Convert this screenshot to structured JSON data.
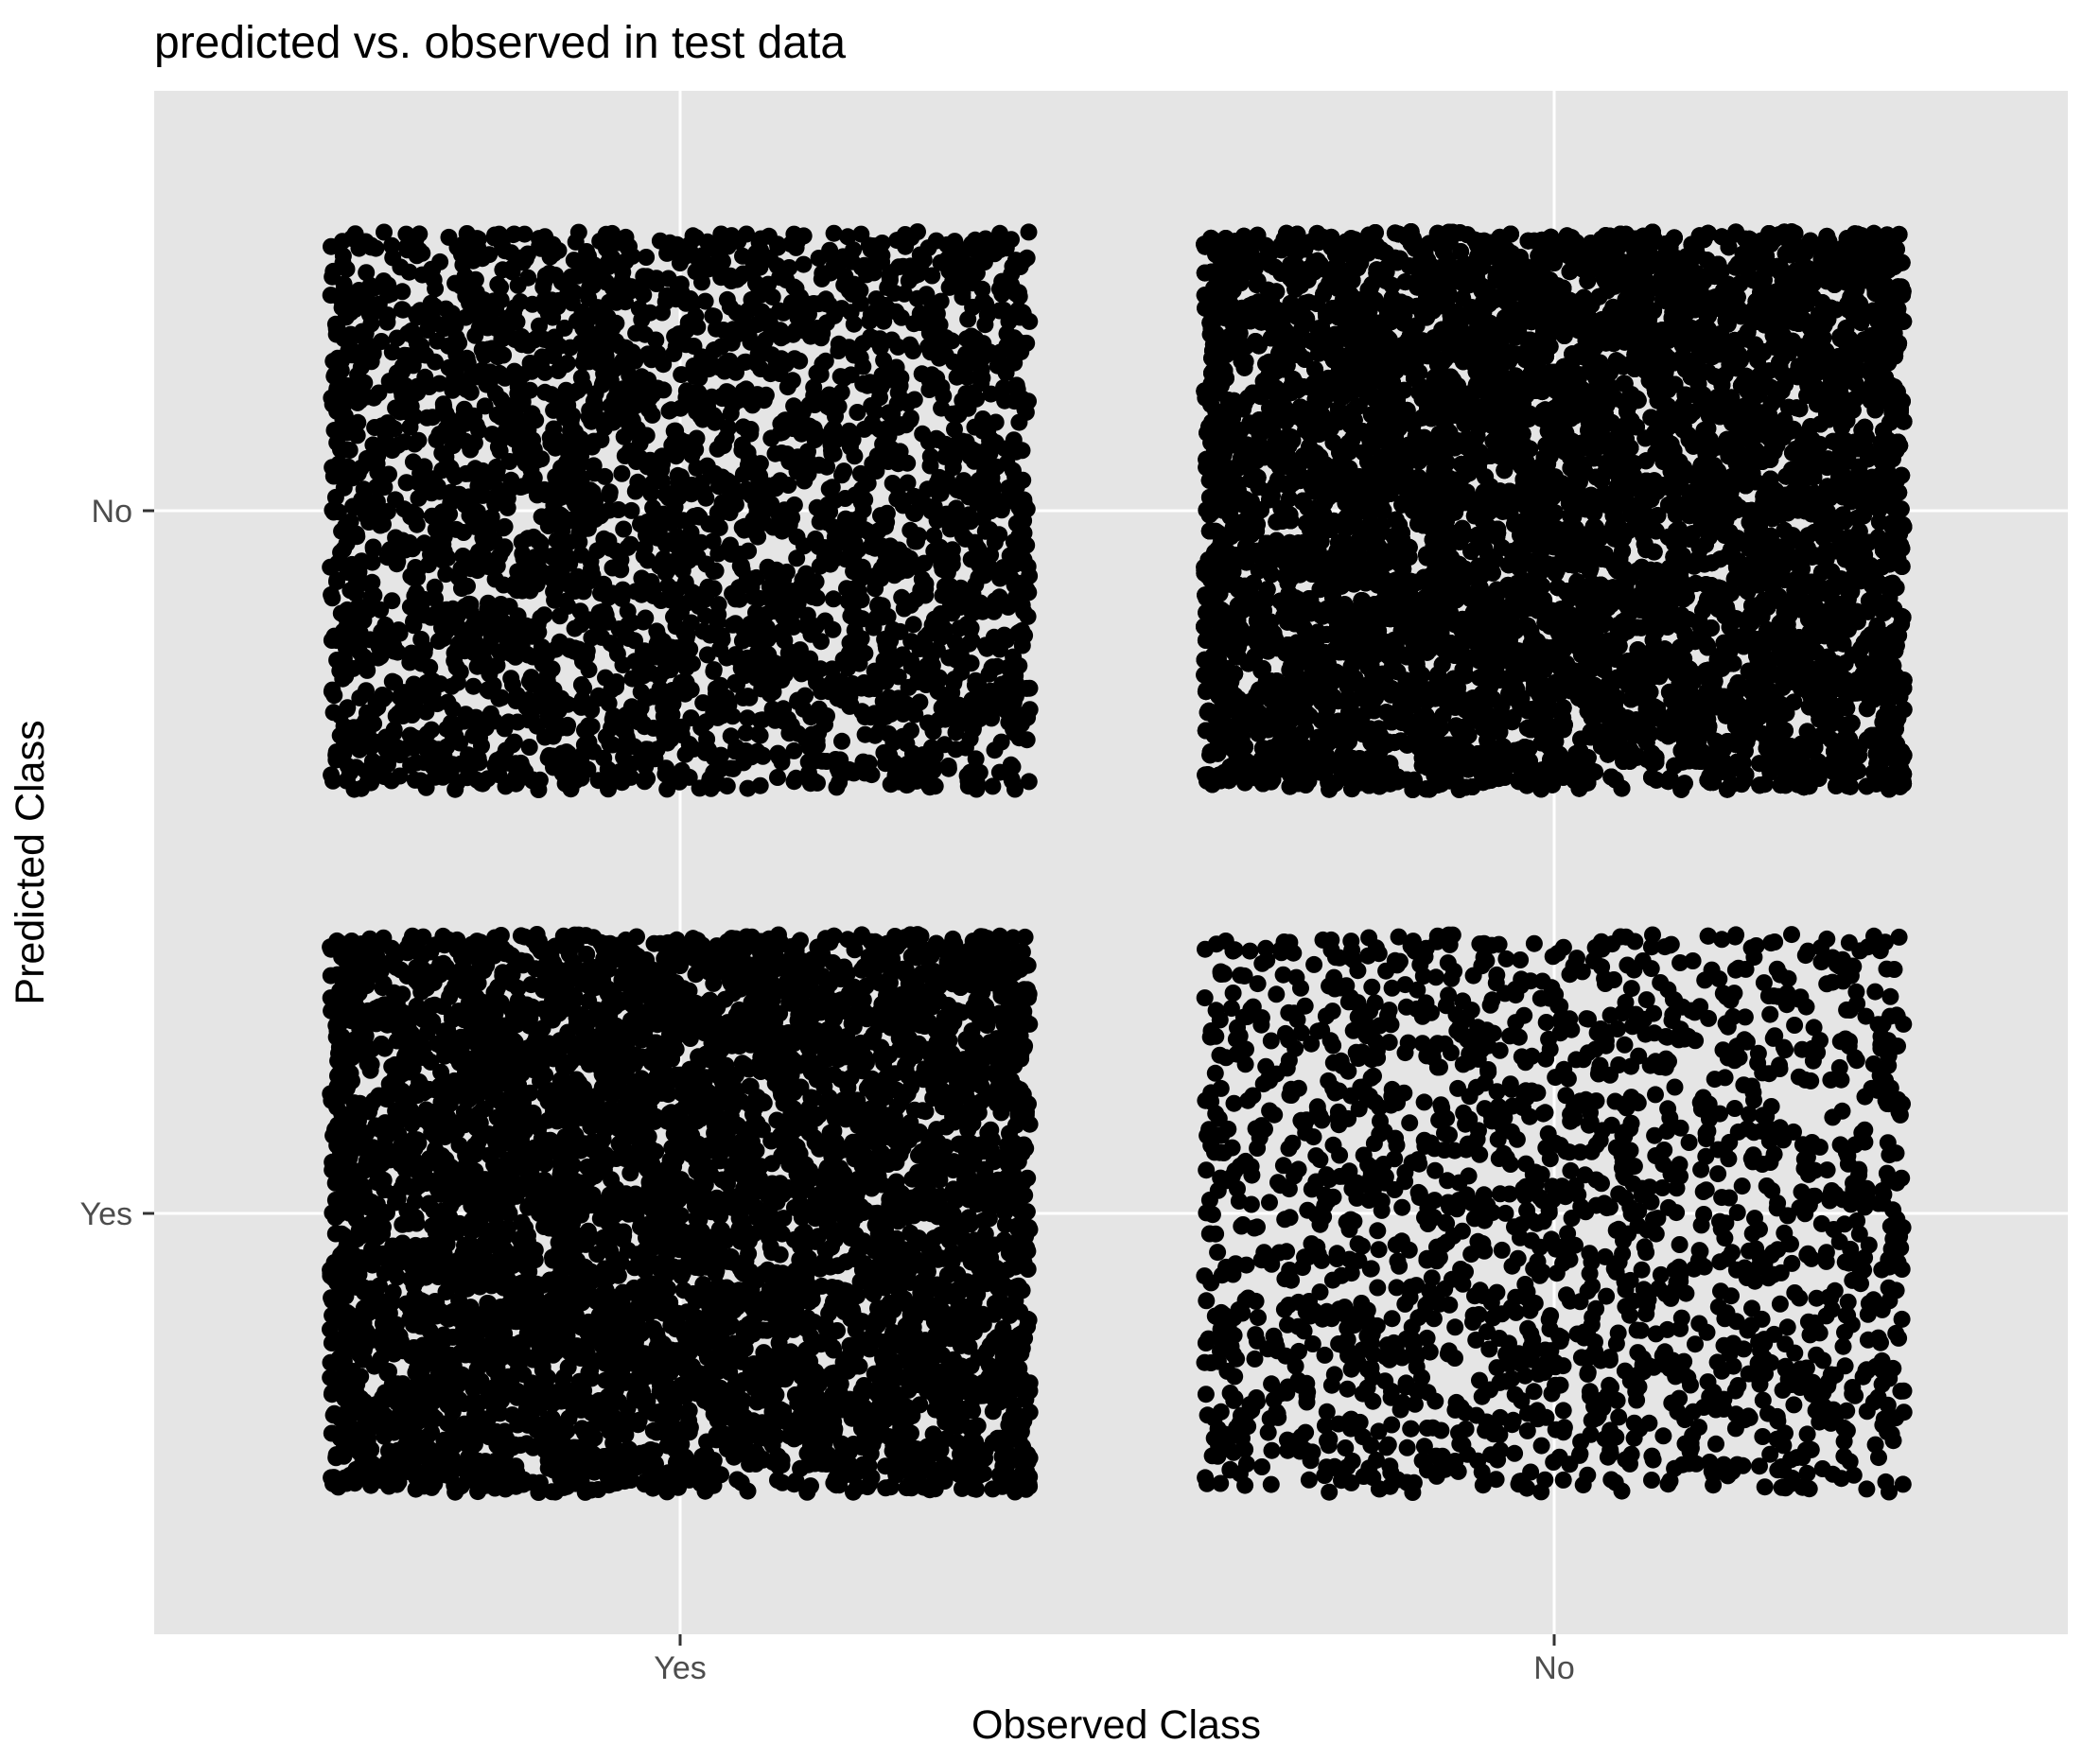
{
  "chart_data": {
    "type": "scatter",
    "jitter": true,
    "title": "predicted vs. observed in test data",
    "xlabel": "Observed Class",
    "ylabel": "Predicted Class",
    "x_categories": [
      "Yes",
      "No"
    ],
    "y_categories": [
      "Yes",
      "No"
    ],
    "grid": true,
    "panel_background": "#e5e5e5",
    "grid_color": "#ffffff",
    "point_color": "#000000",
    "cells": [
      {
        "observed": "Yes",
        "predicted": "No",
        "density": "medium"
      },
      {
        "observed": "No",
        "predicted": "No",
        "density": "very high"
      },
      {
        "observed": "Yes",
        "predicted": "Yes",
        "density": "high"
      },
      {
        "observed": "No",
        "predicted": "Yes",
        "density": "low"
      }
    ]
  }
}
